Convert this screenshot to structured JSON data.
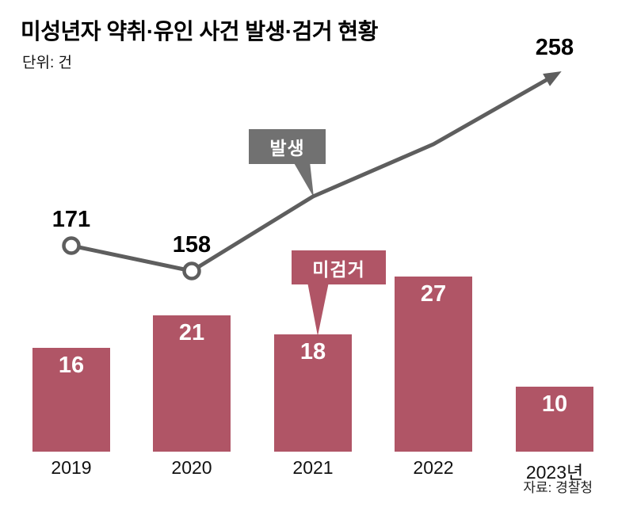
{
  "chart_data": {
    "type": "combo",
    "title": "미성년자 약취·유인 사건 발생·검거 현황",
    "unit_label": "단위: 건",
    "source": "자료: 경찰청",
    "categories": [
      "2019",
      "2020",
      "2021",
      "2022",
      "2023년"
    ],
    "series": [
      {
        "name": "발생",
        "type": "line",
        "values": [
          171,
          158,
          196,
          223,
          258
        ],
        "value_labels_shown": [
          true,
          true,
          false,
          false,
          true
        ],
        "estimated_values": [
          false,
          false,
          true,
          true,
          false
        ],
        "point_markers": [
          true,
          true,
          false,
          false,
          false
        ],
        "arrow_end": true,
        "color": "#5e5e5e"
      },
      {
        "name": "미검거",
        "type": "bar",
        "values": [
          16,
          21,
          18,
          27,
          10
        ],
        "value_labels_shown": [
          true,
          true,
          true,
          true,
          true
        ],
        "color": "#b05566"
      }
    ],
    "annotations": [
      {
        "text": "발생",
        "style": "gray",
        "points_to": "trend-line"
      },
      {
        "text": "미검거",
        "style": "rose",
        "points_to": "bar-2021"
      }
    ],
    "colors": {
      "background": "#ffffff",
      "bar": "#b05566",
      "line": "#5e5e5e",
      "callout_gray": "#717171",
      "callout_rose": "#b05566",
      "text": "#000000"
    },
    "legend_position": "callouts-inline",
    "grid": false,
    "axis_line_shown": false
  }
}
